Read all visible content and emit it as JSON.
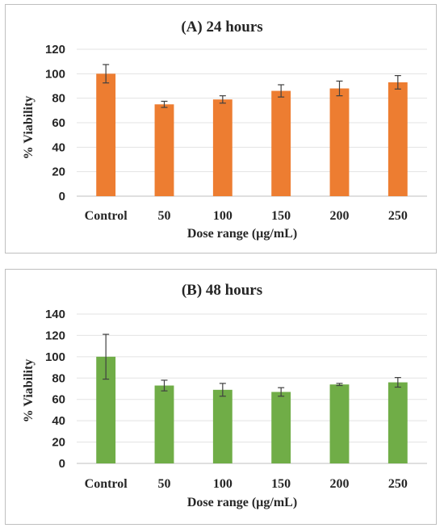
{
  "chart_data": [
    {
      "type": "bar",
      "title": "(A) 24 hours",
      "xlabel": "Dose range (µg/mL)",
      "ylabel": "% Viability",
      "categories": [
        "Control",
        "50",
        "100",
        "150",
        "200",
        "250"
      ],
      "values": [
        100,
        75,
        79,
        86,
        88,
        93
      ],
      "errors": [
        7.5,
        2.5,
        3,
        5,
        6,
        5.5
      ],
      "ylim": [
        0,
        120
      ],
      "yticks": [
        "0",
        "20",
        "40",
        "60",
        "80",
        "100",
        "120"
      ],
      "color": "#ED7D31",
      "grid": true,
      "legend": "none"
    },
    {
      "type": "bar",
      "title": "(B) 48 hours",
      "xlabel": "Dose range (µg/mL)",
      "ylabel": "% Viability",
      "categories": [
        "Control",
        "50",
        "100",
        "150",
        "200",
        "250"
      ],
      "values": [
        100,
        73,
        69,
        67,
        74,
        76
      ],
      "errors": [
        21,
        5,
        6,
        4,
        1,
        4.5
      ],
      "ylim": [
        0,
        140
      ],
      "yticks": [
        "0",
        "20",
        "40",
        "60",
        "80",
        "100",
        "120",
        "140"
      ],
      "color": "#70AD47",
      "grid": true,
      "legend": "none"
    }
  ]
}
